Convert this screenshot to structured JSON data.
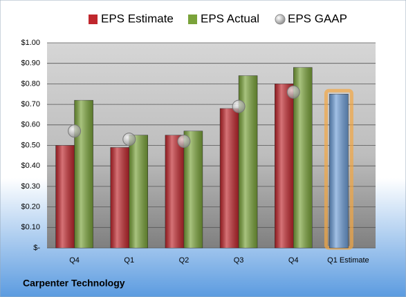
{
  "chart_data": {
    "type": "bar",
    "title": "Carpenter Technology",
    "categories": [
      "Q4",
      "Q1",
      "Q2",
      "Q3",
      "Q4",
      "Q1 Estimate"
    ],
    "series": [
      {
        "name": "EPS Estimate",
        "color": "#c0272d",
        "last_color": "#6f9fd8",
        "values": [
          0.5,
          0.49,
          0.55,
          0.68,
          0.8,
          0.75
        ]
      },
      {
        "name": "EPS Actual",
        "color": "#7aa33a",
        "values": [
          0.72,
          0.55,
          0.57,
          0.84,
          0.88,
          null
        ]
      },
      {
        "name": "EPS GAAP",
        "color": "#a6a6a6",
        "marker": "circle",
        "values": [
          0.57,
          0.53,
          0.52,
          0.69,
          0.76,
          null
        ]
      }
    ],
    "ylim": [
      0,
      1
    ],
    "yticks": [
      {
        "value": 0,
        "label": "$-"
      },
      {
        "value": 0.1,
        "label": "$0.10"
      },
      {
        "value": 0.2,
        "label": "$0.20"
      },
      {
        "value": 0.3,
        "label": "$0.30"
      },
      {
        "value": 0.4,
        "label": "$0.40"
      },
      {
        "value": 0.5,
        "label": "$0.50"
      },
      {
        "value": 0.6,
        "label": "$0.60"
      },
      {
        "value": 0.7,
        "label": "$0.70"
      },
      {
        "value": 0.8,
        "label": "$0.80"
      },
      {
        "value": 0.9,
        "label": "$0.90"
      },
      {
        "value": 1.0,
        "label": "$1.00"
      }
    ],
    "grid": true,
    "legend": "top"
  }
}
